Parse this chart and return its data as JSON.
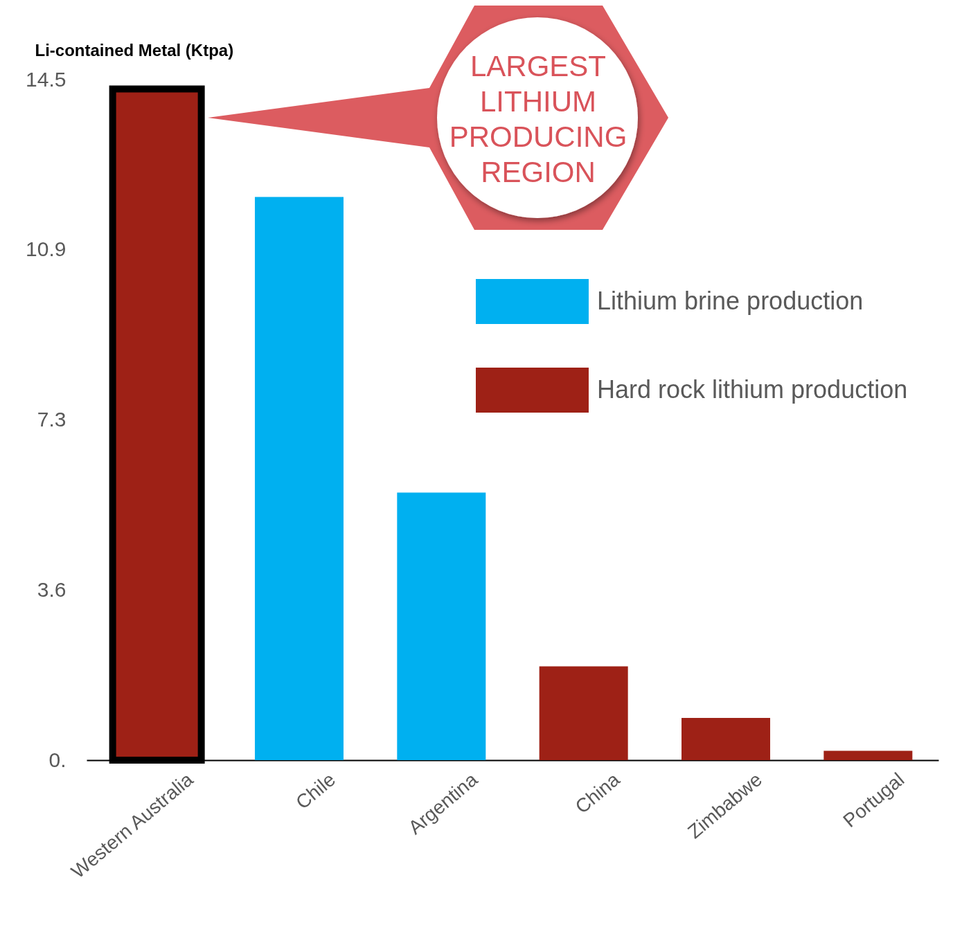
{
  "chart_data": {
    "type": "bar",
    "ylabel": "Li-contained Metal (Ktpa)",
    "categories": [
      "Western Australia",
      "Chile",
      "Argentina",
      "China",
      "Zimbabwe",
      "Portugal"
    ],
    "series": [
      {
        "name": "Lithium brine production",
        "color": "#00b0f0",
        "values": [
          null,
          12.0,
          5.7,
          null,
          null,
          null
        ]
      },
      {
        "name": "Hard rock lithium production",
        "color": "#9e2116",
        "values": [
          14.3,
          null,
          null,
          2.0,
          0.9,
          0.2
        ]
      }
    ],
    "ylim": [
      0,
      14.5
    ],
    "yticks": [
      {
        "value": 0,
        "label": "0."
      },
      {
        "value": 3.625,
        "label": "3.6"
      },
      {
        "value": 7.25,
        "label": "7.3"
      },
      {
        "value": 10.875,
        "label": "10.9"
      },
      14.5
    ],
    "grid": false,
    "legend": "right",
    "annotations": [
      "LARGEST LITHIUM PRODUCING REGION"
    ]
  }
}
